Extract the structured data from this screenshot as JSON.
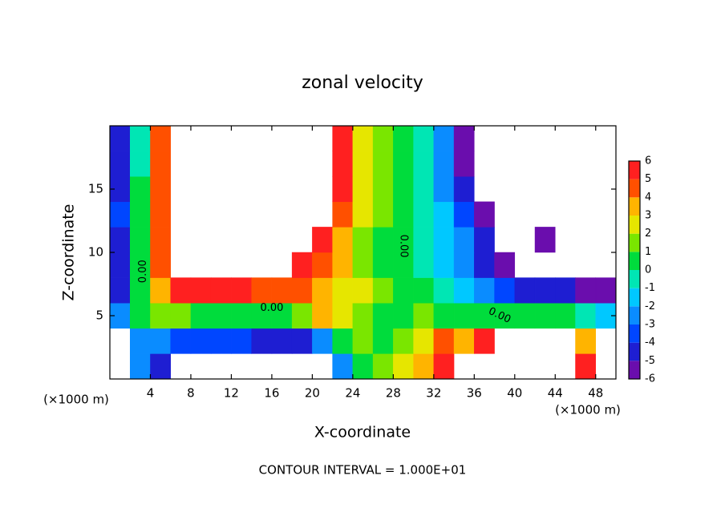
{
  "chart_data": {
    "type": "contour",
    "title": "zonal velocity",
    "x_label": "X-coordinate",
    "y_label": "Z-coordinate",
    "x_unit": "(×1000 m)",
    "footer": "CONTOUR INTERVAL = 1.000E+01",
    "xlim": [
      0,
      50
    ],
    "ylim": [
      0,
      20
    ],
    "xticks": [
      4,
      8,
      12,
      16,
      20,
      24,
      28,
      32,
      36,
      40,
      44,
      48
    ],
    "yticks": [
      5,
      10,
      15
    ],
    "x": [
      1,
      3,
      5,
      7,
      9,
      11,
      13,
      15,
      17,
      19,
      21,
      23,
      25,
      27,
      29,
      31,
      33,
      35,
      37,
      39,
      41,
      43,
      45,
      47,
      49
    ],
    "y": [
      1,
      3,
      5,
      7,
      9,
      11,
      13,
      15,
      17,
      19
    ],
    "z": [
      [
        null,
        -3,
        -5,
        null,
        null,
        null,
        null,
        null,
        null,
        null,
        null,
        -3,
        0,
        1,
        2,
        3,
        5,
        null,
        null,
        null,
        null,
        null,
        null,
        5,
        null
      ],
      [
        null,
        -3,
        -3,
        -4,
        -4,
        -4,
        -4,
        -5,
        -5,
        -5,
        -3,
        0,
        1,
        0,
        1,
        2,
        4,
        3,
        5,
        null,
        null,
        null,
        null,
        3,
        null
      ],
      [
        -3,
        0,
        1,
        1,
        0,
        0,
        0,
        0,
        0,
        1,
        3,
        2,
        1,
        0,
        0,
        1,
        0,
        0,
        0,
        0,
        0,
        0,
        0,
        -1,
        -2
      ],
      [
        -5,
        0,
        3,
        5,
        5,
        5,
        5,
        4,
        4,
        4,
        3,
        2,
        2,
        1,
        0,
        0,
        -1,
        -2,
        -3,
        -4,
        -5,
        -5,
        -5,
        -6,
        -6
      ],
      [
        -5,
        0,
        4,
        null,
        null,
        null,
        null,
        null,
        null,
        5,
        4,
        3,
        1,
        0,
        0,
        -1,
        -2,
        -3,
        -5,
        -6,
        null,
        null,
        null,
        null,
        null
      ],
      [
        -5,
        0,
        4,
        null,
        null,
        null,
        null,
        null,
        null,
        null,
        5,
        3,
        1,
        0,
        0,
        -1,
        -2,
        -3,
        -5,
        null,
        null,
        -6,
        null,
        null,
        null
      ],
      [
        -4,
        0,
        4,
        null,
        null,
        null,
        null,
        null,
        null,
        null,
        null,
        4,
        2,
        1,
        0,
        -1,
        -2,
        -4,
        -6,
        null,
        null,
        null,
        null,
        null,
        null
      ],
      [
        -5,
        0,
        4,
        null,
        null,
        null,
        null,
        null,
        null,
        null,
        null,
        5,
        2,
        1,
        0,
        -1,
        -3,
        -5,
        null,
        null,
        null,
        null,
        null,
        null,
        null
      ],
      [
        -5,
        -1,
        4,
        null,
        null,
        null,
        null,
        null,
        null,
        null,
        null,
        5,
        2,
        1,
        0,
        -1,
        -3,
        -6,
        null,
        null,
        null,
        null,
        null,
        null,
        null
      ],
      [
        -5,
        -1,
        4,
        null,
        null,
        null,
        null,
        null,
        null,
        null,
        null,
        5,
        2,
        1,
        0,
        -1,
        -3,
        -6,
        null,
        null,
        null,
        null,
        null,
        null,
        null
      ]
    ],
    "levels": [
      -6,
      -5,
      -4,
      -3,
      -2,
      -1,
      0,
      1,
      2,
      3,
      4,
      5,
      6
    ],
    "colors": [
      "#6a0dad",
      "#1e1ed2",
      "#0046ff",
      "#0a8cff",
      "#00c8ff",
      "#00e6b4",
      "#00dc3c",
      "#7ae600",
      "#e6e600",
      "#ffb400",
      "#ff5000",
      "#ff2020"
    ],
    "contour_labels": [
      "0.00",
      "0.00",
      "0.00",
      "0.00"
    ]
  }
}
